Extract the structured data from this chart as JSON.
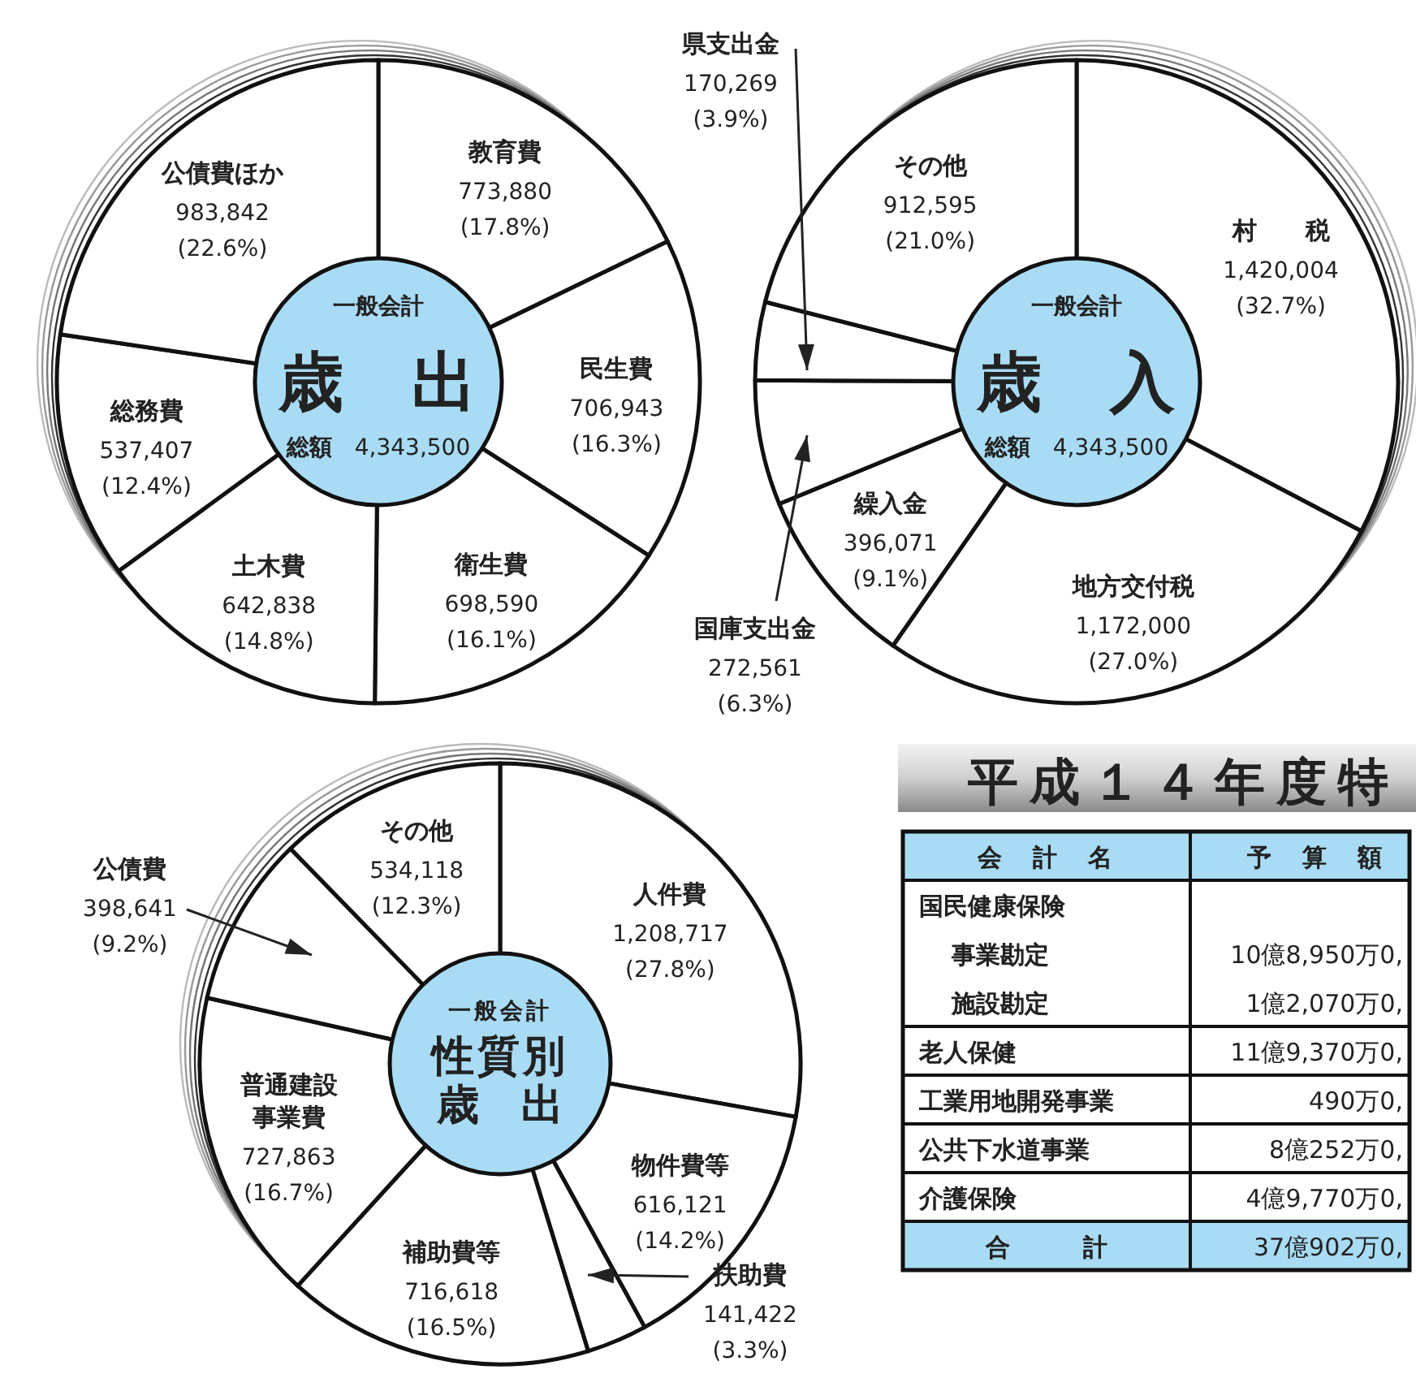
{
  "chart_data": [
    {
      "type": "donut",
      "subtitle": "一般会計",
      "title": "歳　出",
      "annotations": [
        "総額　4,343,500"
      ],
      "categories": [
        "教育費",
        "民生費",
        "衛生費",
        "土木費",
        "総務費",
        "公債費ほか"
      ],
      "values": [
        773880,
        706943,
        698590,
        642838,
        537407,
        983842
      ],
      "value_labels": [
        "773,880\n(17.8%)",
        "706,943\n(16.3%)",
        "698,590\n(16.1%)",
        "642,838\n(14.8%)",
        "537,407\n(12.4%)",
        "983,842\n(22.6%)"
      ],
      "colors": [
        "#ffffff",
        "#ffffff",
        "#ffffff",
        "#ffffff",
        "#ffffff",
        "#ffffff"
      ]
    },
    {
      "type": "donut",
      "subtitle": "一般会計",
      "title": "歳　入",
      "annotations": [
        "総額　4,343,500"
      ],
      "categories": [
        "村　　税",
        "地方交付税",
        "繰入金",
        "国庫支出金",
        "県支出金",
        "その他"
      ],
      "values": [
        1420004,
        1172000,
        396071,
        272561,
        170269,
        912595
      ],
      "value_labels": [
        "1,420,004\n(32.7%)",
        "1,172,000\n(27.0%)",
        "396,071\n(9.1%)",
        "272,561\n(6.3%)",
        "170,269\n(3.9%)",
        "912,595\n(21.0%)"
      ],
      "colors": [
        "#ffffff",
        "#ffffff",
        "#ffffff",
        "#ffffff",
        "#ffffff",
        "#ffffff"
      ]
    },
    {
      "type": "donut",
      "subtitle": "一般会計",
      "title": "性質別",
      "annotations": [
        "歳　出"
      ],
      "categories": [
        "人件費",
        "物件費等",
        "扶助費",
        "補助費等",
        "普通建設事業費",
        "公債費",
        "その他"
      ],
      "values": [
        1208717,
        616121,
        141422,
        716618,
        727863,
        398641,
        534118
      ],
      "value_labels": [
        "1,208,717\n(27.8%)",
        "616,121\n(14.2%)",
        "141,422\n(3.3%)",
        "716,618\n(16.5%)",
        "727,863\n(16.7%)",
        "398,641\n(9.2%)",
        "534,118\n(12.3%)"
      ],
      "colors": [
        "#ffffff",
        "#ffffff",
        "#ffffff",
        "#ffffff",
        "#ffffff",
        "#ffffff",
        "#ffffff"
      ]
    },
    {
      "type": "other",
      "title": "平成１４年度特",
      "categories": [
        "会　計　名",
        "予　算　額"
      ],
      "y_categories": [
        "国民健康保険",
        "事業勘定",
        "施設勘定",
        "老人保健",
        "工業用地開発事業",
        "公共下水道事業",
        "介護保険",
        "合　　　計"
      ],
      "cell_labels": [
        null,
        "10億8,950万0,",
        "1億2,070万0,",
        "11億9,370万0,",
        "490万0,",
        "8億252万0,",
        "4億9,770万0,",
        "37億902万0,"
      ]
    }
  ]
}
